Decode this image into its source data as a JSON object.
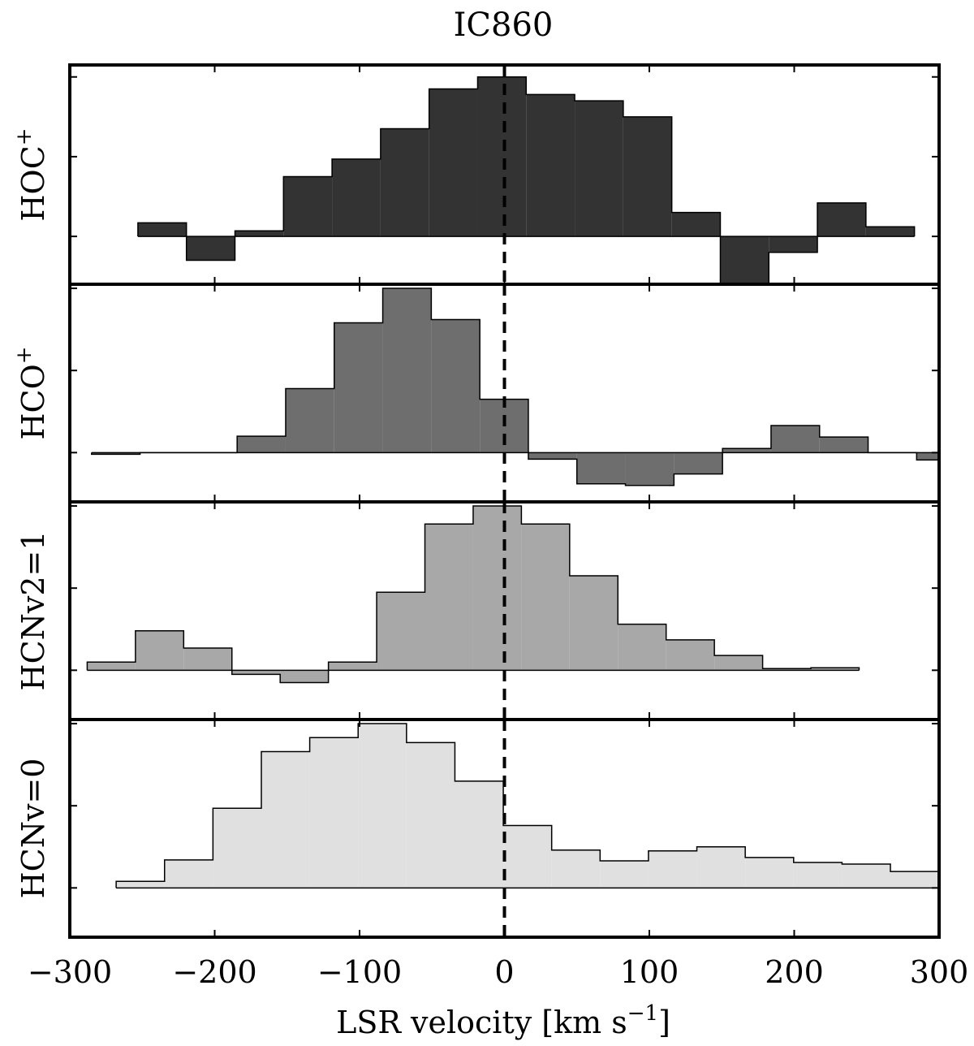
{
  "chart_data": {
    "type": "area",
    "title": "IC860",
    "xlabel": "LSR velocity [km s",
    "xlabel_sup": "−1",
    "xlabel_suffix": "]",
    "xlim": [
      -300,
      300
    ],
    "xticks": [
      -300,
      -200,
      -100,
      0,
      100,
      200,
      300
    ],
    "xtick_labels": [
      "−300",
      "−200",
      "−100",
      "0",
      "100",
      "200",
      "300"
    ],
    "reference_line": {
      "x": 0,
      "style": "dashed"
    },
    "panels": [
      {
        "name": "HOC+",
        "label_main": "HOC",
        "label_sup": "+",
        "color": "#333333",
        "ylim": [
          -0.6,
          2.15
        ],
        "yticks": [
          0,
          1,
          2
        ],
        "x_start": -253,
        "step": 33.5,
        "values": [
          0.17,
          -0.3,
          0.07,
          0.75,
          0.97,
          1.35,
          1.85,
          2.0,
          1.78,
          1.7,
          1.5,
          0.3,
          -0.6,
          -0.2,
          0.42,
          0.12
        ]
      },
      {
        "name": "HCO+",
        "label_main": "HCO",
        "label_sup": "+",
        "color": "#6e6e6e",
        "ylim": [
          -0.6,
          2.05
        ],
        "yticks": [
          0,
          1,
          2
        ],
        "x_start": -285,
        "step": 33.5,
        "values": [
          -0.02,
          0.0,
          0.0,
          0.2,
          0.78,
          1.58,
          2.0,
          1.62,
          0.65,
          -0.08,
          -0.38,
          -0.4,
          -0.26,
          0.05,
          0.33,
          0.19,
          0.0,
          -0.09
        ]
      },
      {
        "name": "HCNv2=1",
        "label_main": "HCNv2=1",
        "label_sup": "",
        "color": "#a8a8a8",
        "ylim": [
          -0.6,
          2.05
        ],
        "yticks": [
          0,
          1,
          2
        ],
        "x_start": -288,
        "step": 33.3,
        "values": [
          0.1,
          0.48,
          0.27,
          -0.05,
          -0.15,
          0.1,
          0.95,
          1.78,
          2.0,
          1.78,
          1.15,
          0.56,
          0.37,
          0.18,
          0.02,
          0.03
        ]
      },
      {
        "name": "HCNv=0",
        "label_main": "HCNv=0",
        "label_sup": "",
        "color": "#e0e0e0",
        "ylim": [
          -0.6,
          2.05
        ],
        "yticks": [
          0,
          1,
          2
        ],
        "x_start": -268,
        "step": 33.4,
        "values": [
          0.08,
          0.34,
          0.97,
          1.66,
          1.83,
          2.0,
          1.77,
          1.3,
          0.76,
          0.46,
          0.33,
          0.45,
          0.5,
          0.37,
          0.31,
          0.29,
          0.2
        ]
      }
    ]
  }
}
